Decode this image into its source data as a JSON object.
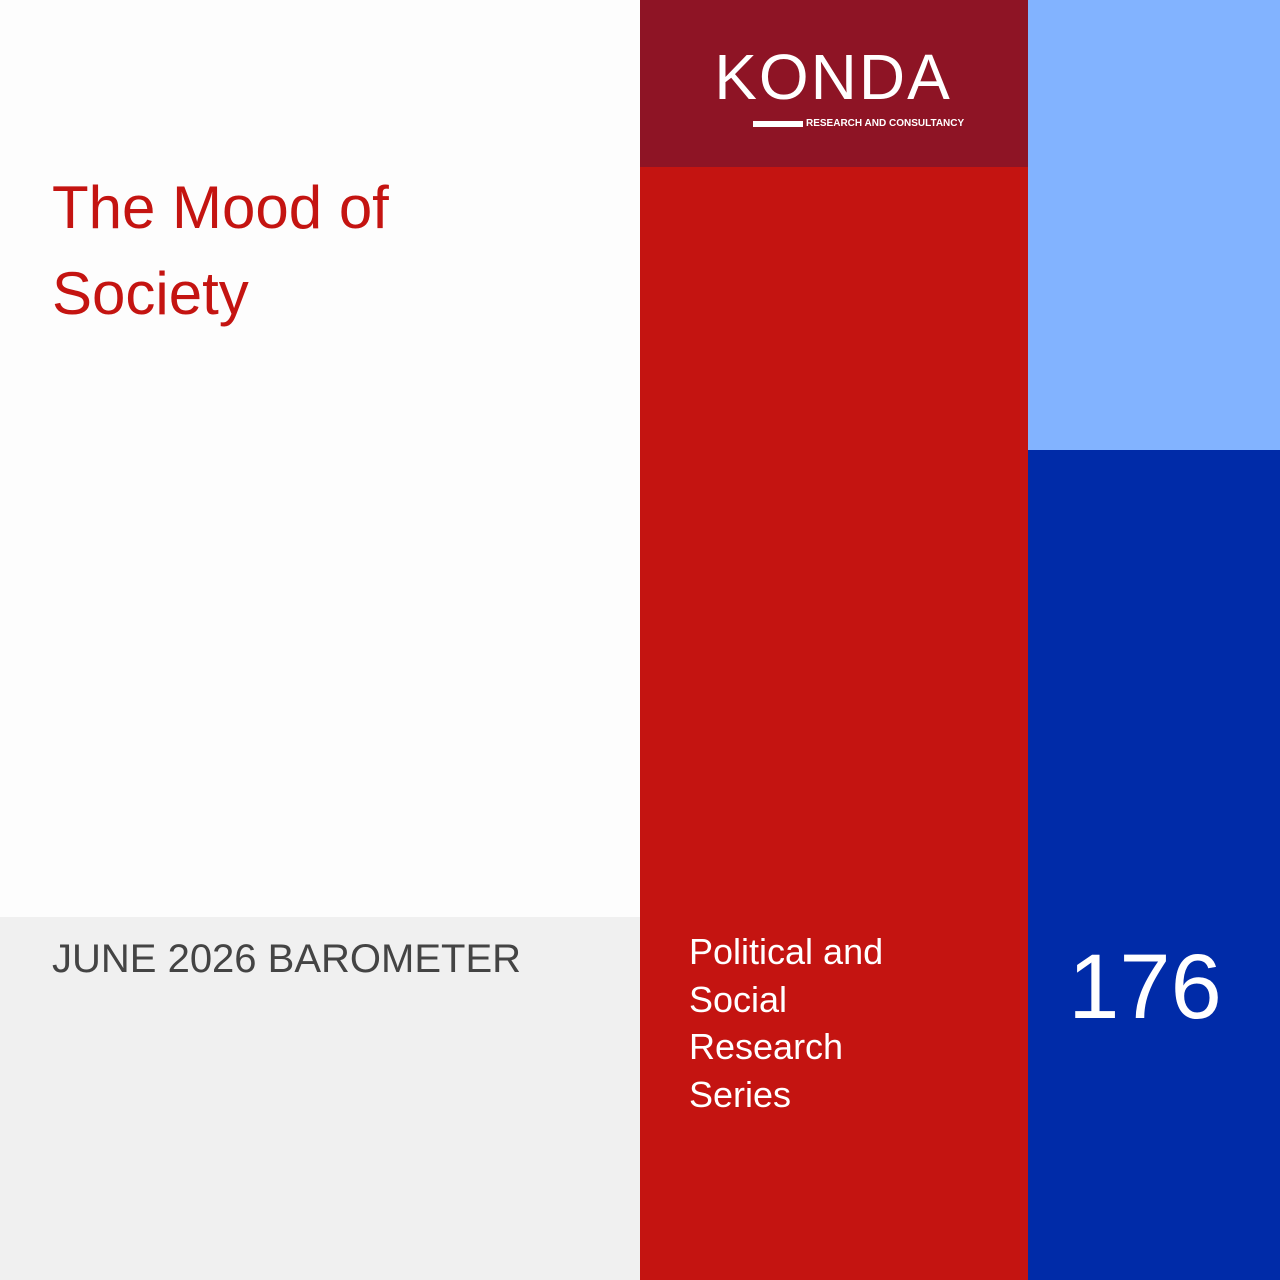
{
  "cover": {
    "title": "The Mood of Society",
    "edition": "JUNE 2026 BAROMETER",
    "logo": {
      "name": "KONDA",
      "tagline": "RESEARCH AND CONSULTANCY"
    },
    "series": "Political and Social Research Series",
    "number": 176
  }
}
